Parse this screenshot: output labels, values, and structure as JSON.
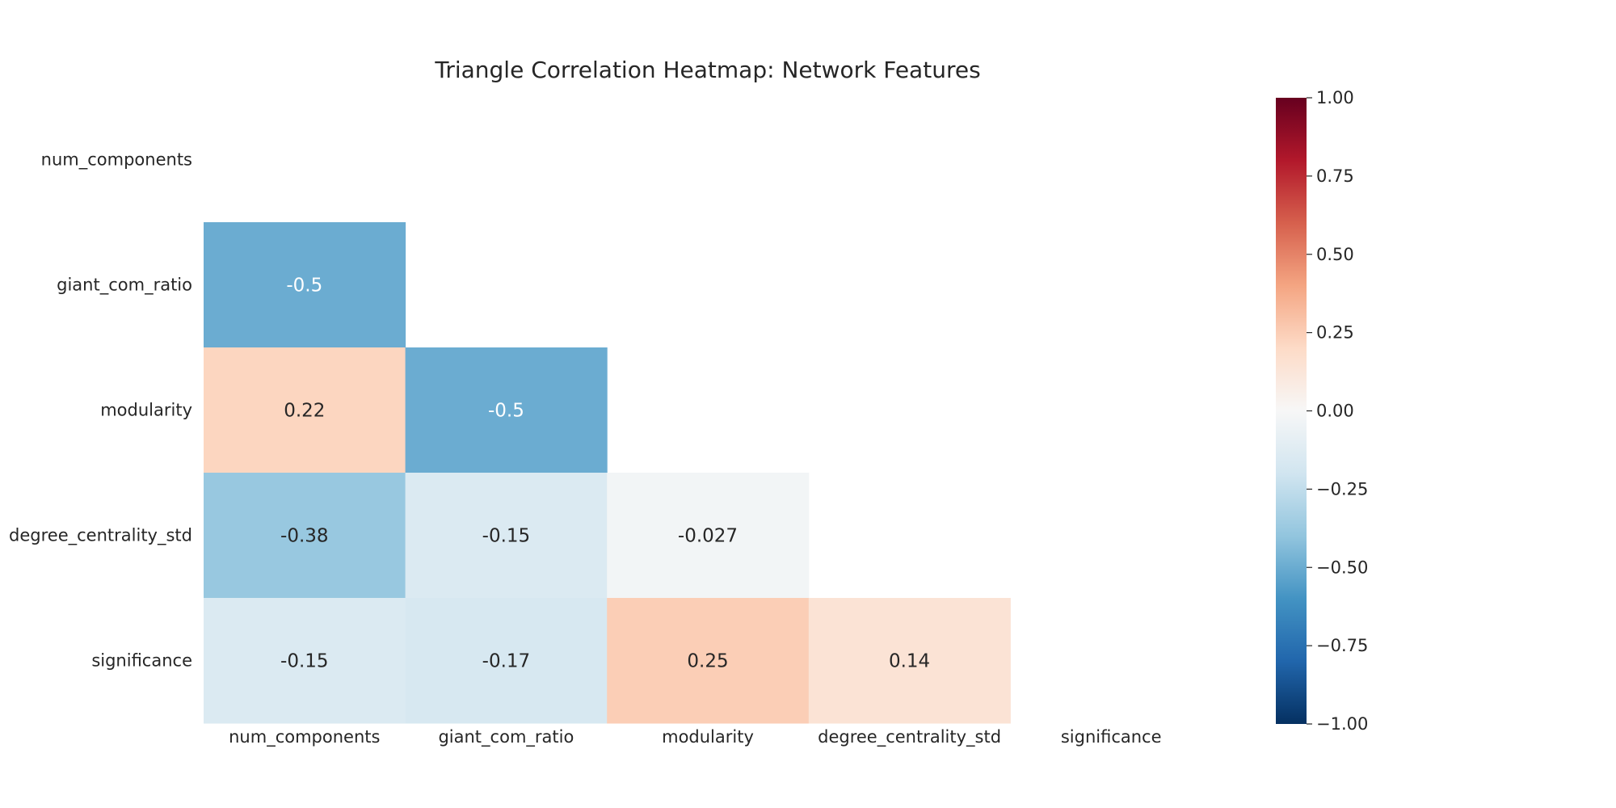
{
  "chart_data": {
    "type": "heatmap",
    "title": "Triangle Correlation Heatmap: Network Features",
    "x_labels": [
      "num_components",
      "giant_com_ratio",
      "modularity",
      "degree_centrality_std",
      "significance"
    ],
    "y_labels": [
      "num_components",
      "giant_com_ratio",
      "modularity",
      "degree_centrality_std",
      "significance"
    ],
    "mask": "upper-triangle-including-diagonal",
    "cells": [
      {
        "row": 1,
        "col": 0,
        "value": -0.5,
        "label": "-0.5"
      },
      {
        "row": 2,
        "col": 0,
        "value": 0.22,
        "label": "0.22"
      },
      {
        "row": 2,
        "col": 1,
        "value": -0.5,
        "label": "-0.5"
      },
      {
        "row": 3,
        "col": 0,
        "value": -0.38,
        "label": "-0.38"
      },
      {
        "row": 3,
        "col": 1,
        "value": -0.15,
        "label": "-0.15"
      },
      {
        "row": 3,
        "col": 2,
        "value": -0.027,
        "label": "-0.027"
      },
      {
        "row": 4,
        "col": 0,
        "value": -0.15,
        "label": "-0.15"
      },
      {
        "row": 4,
        "col": 1,
        "value": -0.17,
        "label": "-0.17"
      },
      {
        "row": 4,
        "col": 2,
        "value": 0.25,
        "label": "0.25"
      },
      {
        "row": 4,
        "col": 3,
        "value": 0.14,
        "label": "0.14"
      }
    ],
    "colormap": "RdBu_r",
    "vmin": -1.0,
    "vmax": 1.0,
    "colorbar": {
      "placement": "right",
      "ticks": [
        1.0,
        0.75,
        0.5,
        0.25,
        0.0,
        -0.25,
        -0.5,
        -0.75,
        -1.0
      ],
      "tick_labels": [
        "1.00",
        "0.75",
        "0.50",
        "0.25",
        "0.00",
        "−0.25",
        "−0.50",
        "−0.75",
        "−1.00"
      ]
    },
    "grid": false
  },
  "colors": {
    "text_dark": "#262626",
    "text_light": "#ffffff",
    "background": "#ffffff"
  }
}
